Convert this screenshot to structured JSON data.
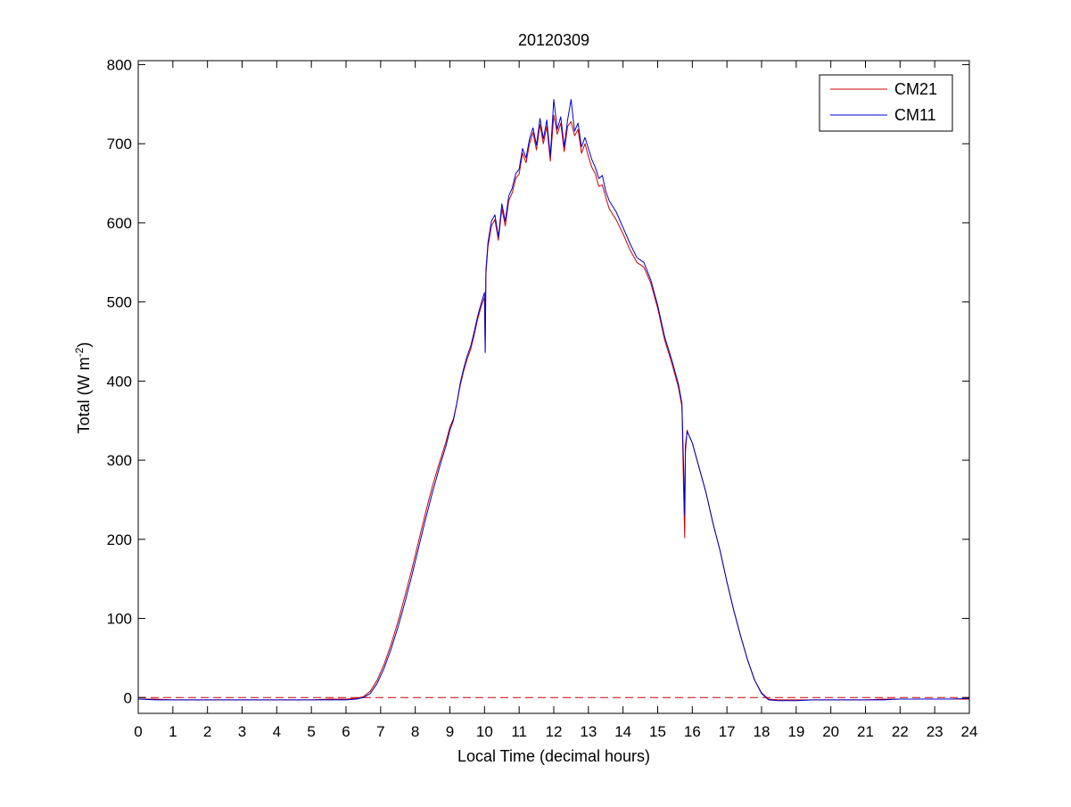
{
  "chart_data": {
    "type": "line",
    "title": "20120309",
    "xlabel": "Local Time (decimal hours)",
    "ylabel": {
      "base": "Total (W m",
      "sup": "-2",
      "tail": ")"
    },
    "xlim": [
      0,
      24
    ],
    "ylim": [
      -20,
      805
    ],
    "x_ticks": [
      0,
      1,
      2,
      3,
      4,
      5,
      6,
      7,
      8,
      9,
      10,
      11,
      12,
      13,
      14,
      15,
      16,
      17,
      18,
      19,
      20,
      21,
      22,
      23,
      24
    ],
    "y_ticks": [
      0,
      100,
      200,
      300,
      400,
      500,
      600,
      700,
      800
    ],
    "grid": false,
    "legend": {
      "position": "top-right",
      "entries": [
        "CM21",
        "CM11"
      ]
    },
    "reference_line": {
      "y": 0,
      "style": "dashed",
      "color": "#cc0000"
    },
    "series": [
      {
        "name": "CM21",
        "color": "#cc0000",
        "points": [
          [
            0,
            -2
          ],
          [
            0.5,
            -2
          ],
          [
            1,
            -3
          ],
          [
            1.5,
            -3
          ],
          [
            2,
            -3
          ],
          [
            2.5,
            -3
          ],
          [
            3,
            -3
          ],
          [
            3.5,
            -3
          ],
          [
            4,
            -3
          ],
          [
            4.5,
            -3
          ],
          [
            5,
            -3
          ],
          [
            5.5,
            -2
          ],
          [
            6,
            -2
          ],
          [
            6.3,
            -1
          ],
          [
            6.5,
            1
          ],
          [
            6.7,
            8
          ],
          [
            6.9,
            22
          ],
          [
            7.1,
            42
          ],
          [
            7.3,
            67
          ],
          [
            7.5,
            96
          ],
          [
            7.7,
            128
          ],
          [
            7.9,
            162
          ],
          [
            8.1,
            198
          ],
          [
            8.3,
            234
          ],
          [
            8.5,
            268
          ],
          [
            8.7,
            297
          ],
          [
            8.9,
            325
          ],
          [
            9.0,
            342
          ],
          [
            9.1,
            352
          ],
          [
            9.2,
            372
          ],
          [
            9.3,
            395
          ],
          [
            9.4,
            413
          ],
          [
            9.5,
            428
          ],
          [
            9.6,
            440
          ],
          [
            9.7,
            458
          ],
          [
            9.8,
            478
          ],
          [
            9.9,
            494
          ],
          [
            10.0,
            506
          ],
          [
            10.02,
            438
          ],
          [
            10.04,
            535
          ],
          [
            10.1,
            570
          ],
          [
            10.2,
            596
          ],
          [
            10.3,
            604
          ],
          [
            10.4,
            578
          ],
          [
            10.5,
            618
          ],
          [
            10.6,
            596
          ],
          [
            10.7,
            628
          ],
          [
            10.8,
            638
          ],
          [
            10.9,
            656
          ],
          [
            11.0,
            662
          ],
          [
            11.1,
            688
          ],
          [
            11.2,
            676
          ],
          [
            11.3,
            700
          ],
          [
            11.4,
            714
          ],
          [
            11.5,
            692
          ],
          [
            11.6,
            724
          ],
          [
            11.7,
            700
          ],
          [
            11.8,
            722
          ],
          [
            11.9,
            678
          ],
          [
            12.0,
            736
          ],
          [
            12.1,
            712
          ],
          [
            12.2,
            726
          ],
          [
            12.3,
            690
          ],
          [
            12.4,
            722
          ],
          [
            12.5,
            728
          ],
          [
            12.6,
            710
          ],
          [
            12.7,
            718
          ],
          [
            12.8,
            688
          ],
          [
            12.9,
            700
          ],
          [
            13.0,
            684
          ],
          [
            13.1,
            670
          ],
          [
            13.2,
            662
          ],
          [
            13.3,
            646
          ],
          [
            13.4,
            648
          ],
          [
            13.5,
            632
          ],
          [
            13.6,
            618
          ],
          [
            13.8,
            604
          ],
          [
            14.0,
            586
          ],
          [
            14.2,
            566
          ],
          [
            14.4,
            550
          ],
          [
            14.6,
            544
          ],
          [
            14.8,
            524
          ],
          [
            15.0,
            492
          ],
          [
            15.2,
            452
          ],
          [
            15.4,
            424
          ],
          [
            15.6,
            392
          ],
          [
            15.7,
            368
          ],
          [
            15.75,
            260
          ],
          [
            15.78,
            202
          ],
          [
            15.8,
            310
          ],
          [
            15.85,
            338
          ],
          [
            15.9,
            332
          ],
          [
            16.0,
            322
          ],
          [
            16.2,
            290
          ],
          [
            16.4,
            258
          ],
          [
            16.6,
            220
          ],
          [
            16.8,
            186
          ],
          [
            17.0,
            146
          ],
          [
            17.2,
            110
          ],
          [
            17.4,
            77
          ],
          [
            17.6,
            47
          ],
          [
            17.8,
            22
          ],
          [
            18.0,
            6
          ],
          [
            18.2,
            -2
          ],
          [
            18.5,
            -3
          ],
          [
            19,
            -3
          ],
          [
            19.5,
            -3
          ],
          [
            20,
            -3
          ],
          [
            20.5,
            -3
          ],
          [
            21,
            -3
          ],
          [
            21.5,
            -2
          ],
          [
            22,
            -2
          ],
          [
            22.5,
            -2
          ],
          [
            23,
            -2
          ],
          [
            23.5,
            -2
          ],
          [
            24,
            -2
          ]
        ]
      },
      {
        "name": "CM11",
        "color": "#0000cc",
        "points": [
          [
            0,
            -2
          ],
          [
            0.5,
            -3
          ],
          [
            1,
            -3
          ],
          [
            1.5,
            -3
          ],
          [
            2,
            -3
          ],
          [
            2.5,
            -3
          ],
          [
            3,
            -3
          ],
          [
            3.5,
            -3
          ],
          [
            4,
            -3
          ],
          [
            4.5,
            -3
          ],
          [
            5,
            -3
          ],
          [
            5.5,
            -3
          ],
          [
            6,
            -3
          ],
          [
            6.3,
            -2
          ],
          [
            6.5,
            0
          ],
          [
            6.7,
            5
          ],
          [
            6.9,
            18
          ],
          [
            7.1,
            37
          ],
          [
            7.3,
            61
          ],
          [
            7.5,
            89
          ],
          [
            7.7,
            120
          ],
          [
            7.9,
            154
          ],
          [
            8.1,
            190
          ],
          [
            8.3,
            226
          ],
          [
            8.5,
            260
          ],
          [
            8.7,
            291
          ],
          [
            8.9,
            320
          ],
          [
            9.0,
            338
          ],
          [
            9.1,
            350
          ],
          [
            9.2,
            372
          ],
          [
            9.3,
            398
          ],
          [
            9.4,
            416
          ],
          [
            9.5,
            432
          ],
          [
            9.6,
            444
          ],
          [
            9.7,
            462
          ],
          [
            9.8,
            482
          ],
          [
            9.9,
            498
          ],
          [
            10.0,
            512
          ],
          [
            10.02,
            436
          ],
          [
            10.04,
            540
          ],
          [
            10.1,
            575
          ],
          [
            10.2,
            602
          ],
          [
            10.3,
            610
          ],
          [
            10.4,
            582
          ],
          [
            10.5,
            624
          ],
          [
            10.6,
            602
          ],
          [
            10.7,
            634
          ],
          [
            10.8,
            644
          ],
          [
            10.9,
            662
          ],
          [
            11.0,
            668
          ],
          [
            11.1,
            694
          ],
          [
            11.2,
            682
          ],
          [
            11.3,
            706
          ],
          [
            11.4,
            720
          ],
          [
            11.5,
            698
          ],
          [
            11.6,
            732
          ],
          [
            11.7,
            706
          ],
          [
            11.8,
            730
          ],
          [
            11.9,
            684
          ],
          [
            12.0,
            756
          ],
          [
            12.1,
            718
          ],
          [
            12.2,
            734
          ],
          [
            12.3,
            696
          ],
          [
            12.4,
            730
          ],
          [
            12.5,
            756
          ],
          [
            12.6,
            716
          ],
          [
            12.7,
            726
          ],
          [
            12.8,
            696
          ],
          [
            12.9,
            708
          ],
          [
            13.0,
            694
          ],
          [
            13.1,
            680
          ],
          [
            13.2,
            670
          ],
          [
            13.3,
            656
          ],
          [
            13.4,
            660
          ],
          [
            13.5,
            640
          ],
          [
            13.6,
            628
          ],
          [
            13.8,
            614
          ],
          [
            14.0,
            594
          ],
          [
            14.2,
            574
          ],
          [
            14.4,
            556
          ],
          [
            14.6,
            550
          ],
          [
            14.8,
            528
          ],
          [
            15.0,
            496
          ],
          [
            15.2,
            456
          ],
          [
            15.4,
            428
          ],
          [
            15.6,
            396
          ],
          [
            15.7,
            372
          ],
          [
            15.75,
            290
          ],
          [
            15.78,
            230
          ],
          [
            15.8,
            318
          ],
          [
            15.85,
            336
          ],
          [
            15.9,
            332
          ],
          [
            16.0,
            322
          ],
          [
            16.2,
            290
          ],
          [
            16.4,
            258
          ],
          [
            16.6,
            220
          ],
          [
            16.8,
            186
          ],
          [
            17.0,
            146
          ],
          [
            17.2,
            110
          ],
          [
            17.4,
            77
          ],
          [
            17.6,
            47
          ],
          [
            17.8,
            22
          ],
          [
            18.0,
            5
          ],
          [
            18.2,
            -3
          ],
          [
            18.5,
            -4
          ],
          [
            19,
            -4
          ],
          [
            19.5,
            -3
          ],
          [
            20,
            -3
          ],
          [
            20.5,
            -3
          ],
          [
            21,
            -3
          ],
          [
            21.5,
            -3
          ],
          [
            22,
            -2
          ],
          [
            22.5,
            -2
          ],
          [
            23,
            -2
          ],
          [
            23.5,
            -2
          ],
          [
            24,
            -1
          ]
        ]
      }
    ]
  }
}
